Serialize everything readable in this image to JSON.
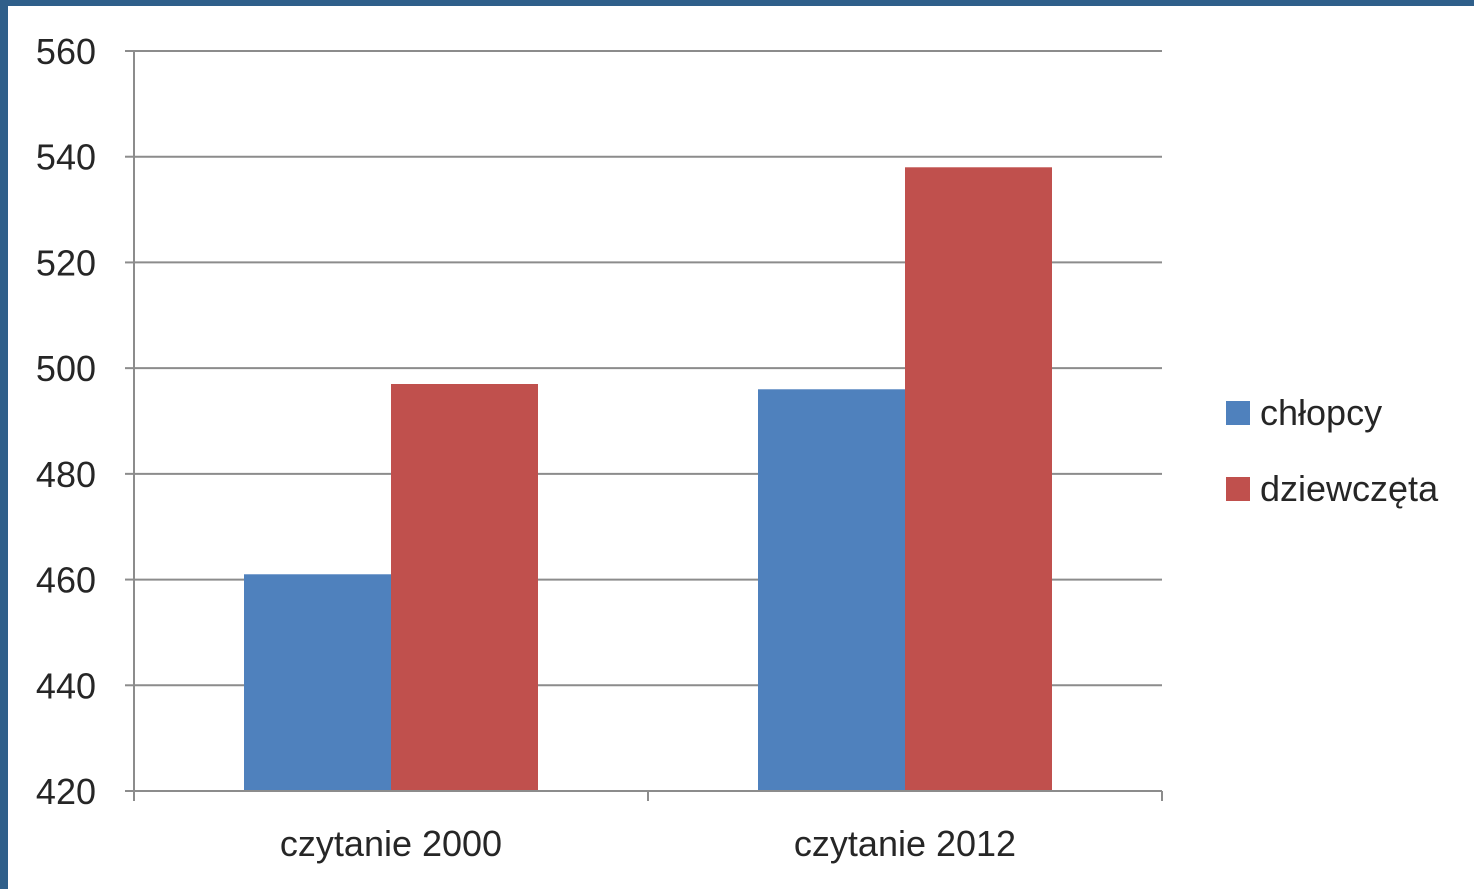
{
  "chart_data": {
    "type": "bar",
    "categories": [
      "czytanie 2000",
      "czytanie 2012"
    ],
    "series": [
      {
        "name": "chłopcy",
        "color": "#4f81bd",
        "values": [
          461,
          496
        ]
      },
      {
        "name": "dziewczęta",
        "color": "#c0504d",
        "values": [
          497,
          538
        ]
      }
    ],
    "title": "",
    "xlabel": "",
    "ylabel": "",
    "ylim": [
      420,
      560
    ],
    "yticks": [
      420,
      440,
      460,
      480,
      500,
      520,
      540,
      560
    ],
    "grid": true,
    "legend_position": "right"
  },
  "colors": {
    "frame_border": "#2f5f8a",
    "gridline": "#8c8c8c",
    "text": "#262626"
  }
}
